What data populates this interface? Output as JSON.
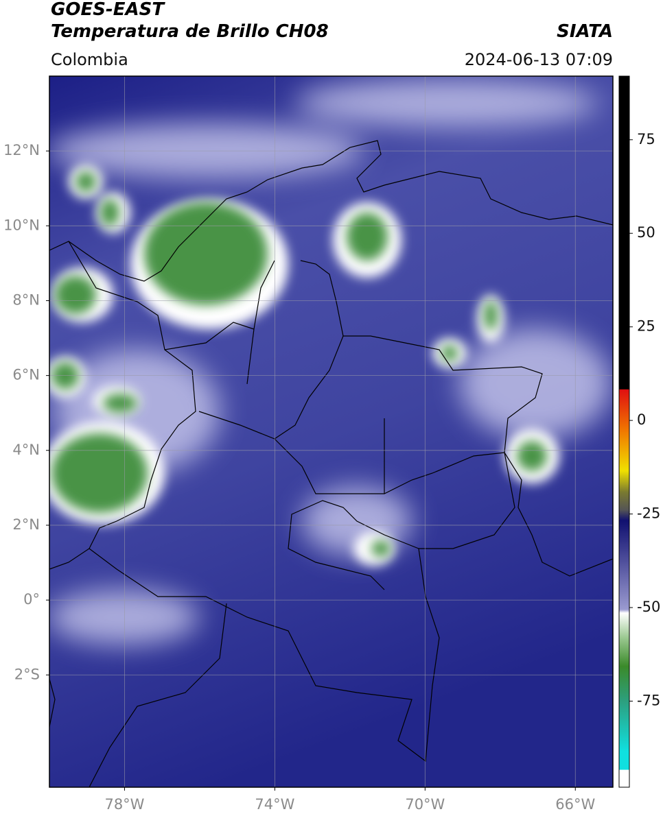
{
  "header": {
    "title_line1": "GOES-EAST",
    "title_line2": "Temperatura de Brillo CH08",
    "region": "Colombia",
    "source": "SIATA",
    "datetime": "2024-06-13 07:09"
  },
  "map": {
    "xlim": [
      -80,
      -65
    ],
    "ylim": [
      -5,
      14
    ],
    "grid": true,
    "xticks": [
      {
        "value": -78,
        "label": "78°W"
      },
      {
        "value": -74,
        "label": "74°W"
      },
      {
        "value": -70,
        "label": "70°W"
      },
      {
        "value": -66,
        "label": "66°W"
      }
    ],
    "yticks": [
      {
        "value": 12,
        "label": "12°N"
      },
      {
        "value": 10,
        "label": "10°N"
      },
      {
        "value": 8,
        "label": "8°N"
      },
      {
        "value": 6,
        "label": "6°N"
      },
      {
        "value": 4,
        "label": "4°N"
      },
      {
        "value": 2,
        "label": "2°N"
      },
      {
        "value": 0,
        "label": "0°"
      },
      {
        "value": -2,
        "label": "2°S"
      }
    ]
  },
  "colorbar": {
    "lim": [
      -98,
      92
    ],
    "ticks": [
      75,
      50,
      25,
      0,
      -25,
      -50,
      -75
    ]
  }
}
